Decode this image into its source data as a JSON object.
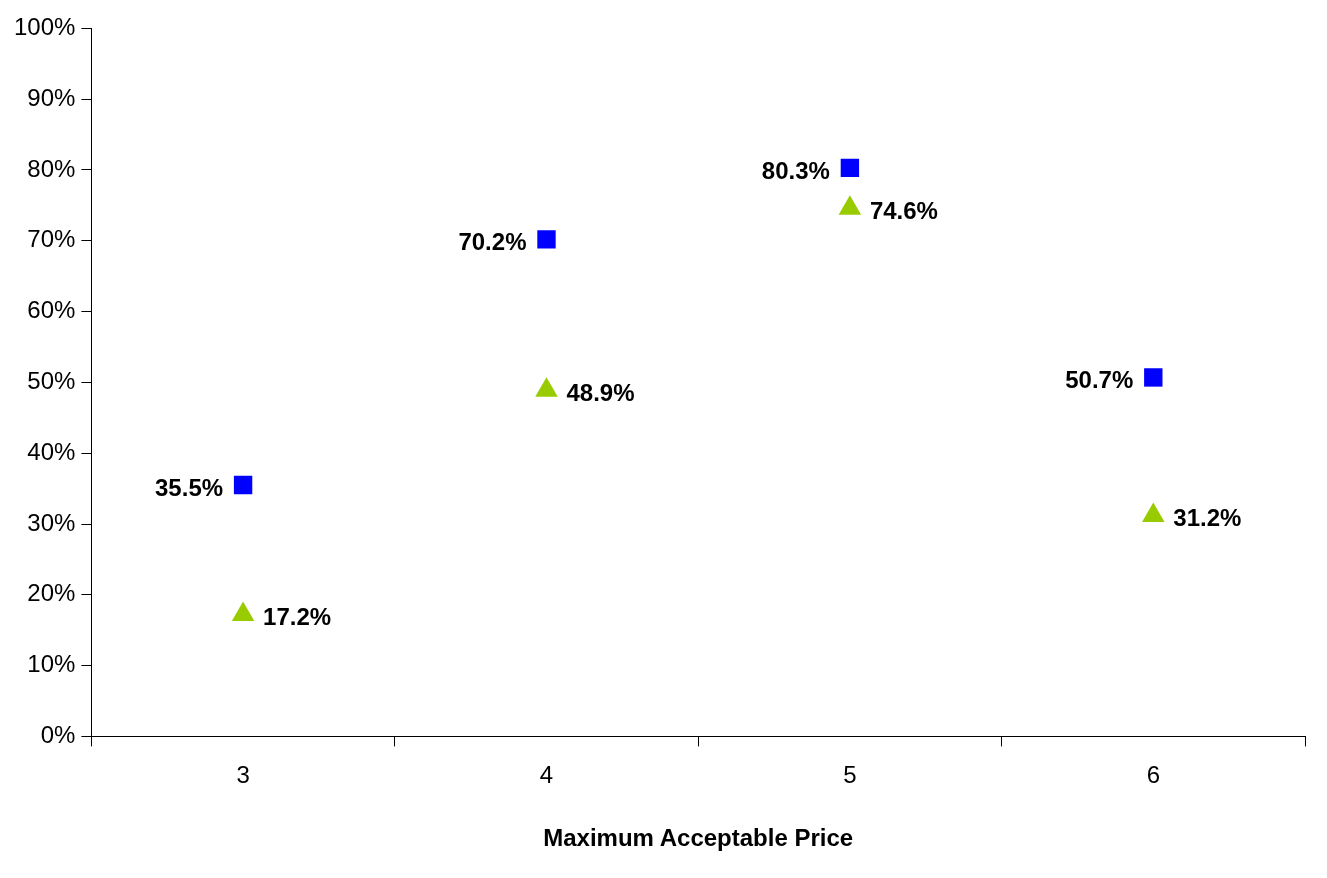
{
  "chart_data": {
    "type": "scatter",
    "xlabel": "Maximum Acceptable Price",
    "categories": [
      "3",
      "4",
      "5",
      "6"
    ],
    "series": [
      {
        "color": "#0000ff",
        "marker": "square",
        "values": [
          35.5,
          70.2,
          80.3,
          50.7
        ],
        "value_labels": [
          "35.5%",
          "70.2%",
          "80.3%",
          "50.7%"
        ]
      },
      {
        "color": "#99cc00",
        "marker": "triangle",
        "values": [
          17.2,
          48.9,
          74.6,
          31.2
        ],
        "value_labels": [
          "17.2%",
          "48.9%",
          "74.6%",
          "31.2%"
        ]
      }
    ],
    "ylim": [
      0,
      100
    ],
    "yticks": [
      {
        "value": 0,
        "label": "0%"
      },
      {
        "value": 10,
        "label": "10%"
      },
      {
        "value": 20,
        "label": "20%"
      },
      {
        "value": 30,
        "label": "30%"
      },
      {
        "value": 40,
        "label": "40%"
      },
      {
        "value": 50,
        "label": "50%"
      },
      {
        "value": 60,
        "label": "60%"
      },
      {
        "value": 70,
        "label": "70%"
      },
      {
        "value": 80,
        "label": "80%"
      },
      {
        "value": 90,
        "label": "90%"
      },
      {
        "value": 100,
        "label": "100%"
      }
    ],
    "grid": false,
    "legend": false
  }
}
